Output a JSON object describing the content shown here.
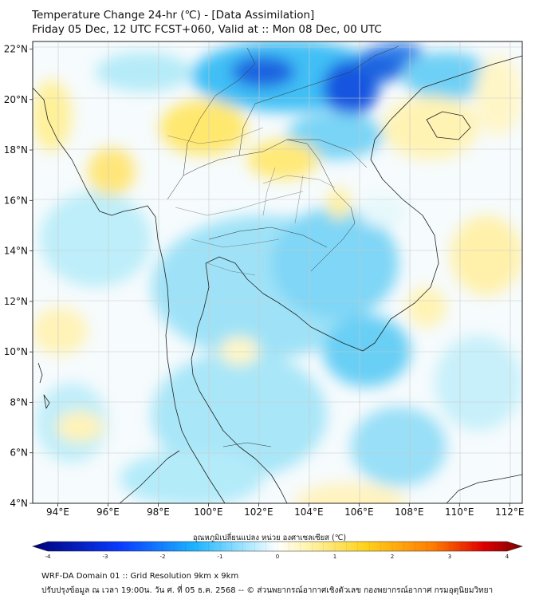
{
  "title": {
    "line1": "Temperature Change 24-hr (℃) - [Data Assimilation]",
    "line2": "Friday 05 Dec, 12 UTC FCST+060, Valid at :: Mon 08 Dec, 00 UTC"
  },
  "map": {
    "lat_labels": [
      "22°N",
      "20°N",
      "18°N",
      "16°N",
      "14°N",
      "12°N",
      "10°N",
      "8°N",
      "6°N",
      "4°N"
    ],
    "lon_labels": [
      "94°E",
      "96°E",
      "98°E",
      "100°E",
      "102°E",
      "104°E",
      "106°E",
      "108°E",
      "110°E",
      "112°E"
    ],
    "lat_range": [
      4,
      22.3
    ],
    "lon_range": [
      93,
      112.5
    ]
  },
  "colorbar": {
    "title": "อุณหภูมิเปลี่ยนแปลง หน่วย องศาเซลเซียส (℃)",
    "ticks": [
      "-4",
      "-3",
      "-2",
      "-1",
      "0",
      "1",
      "2",
      "3",
      "4"
    ],
    "range": [
      -4,
      4
    ],
    "colors": {
      "deep_blue": "#00007a",
      "blue": "#0a3cff",
      "cyan": "#1ab4ff",
      "light_cyan": "#b8ecff",
      "white": "#ffffff",
      "light_yellow": "#fff4b0",
      "yellow": "#ffd21a",
      "orange": "#ff7a00",
      "red": "#e00000",
      "dark_red": "#7a0000"
    }
  },
  "footer": {
    "line1": "WRF-DA Domain 01 :: Grid Resolution 9km x 9km",
    "line2": "ปรับปรุงข้อมูล ณ เวลา 19:00น. วัน ศ. ที่ 05 ธ.ค. 2568 -- © ส่วนพยากรณ์อากาศเชิงตัวเลข กองพยากรณ์อากาศ กรมอุตุนิยมวิทยา"
  }
}
